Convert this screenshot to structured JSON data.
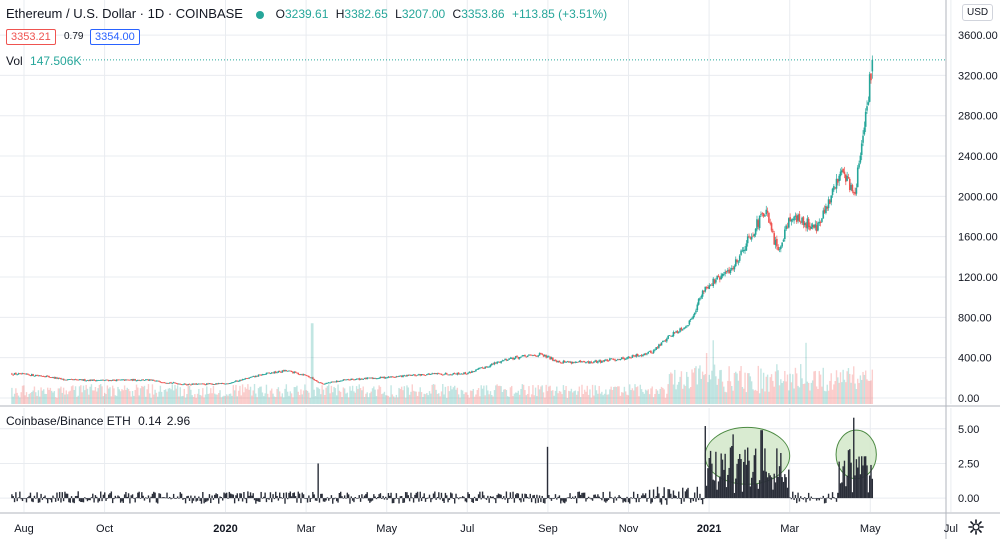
{
  "header": {
    "symbol": "Ethereum / U.S. Dollar · 1D · COINBASE",
    "o_label": "O",
    "o_value": "3239.61",
    "h_label": "H",
    "h_value": "3382.65",
    "l_label": "L",
    "l_value": "3207.00",
    "c_label": "C",
    "c_value": "3353.86",
    "change": "+113.85 (+3.51%)",
    "bid": "3353.21",
    "spread": "0.79",
    "ask": "3354.00",
    "vol_label": "Vol",
    "vol_value": "147.506K",
    "currency": "USD"
  },
  "indicator": {
    "label": "Coinbase/Binance ETH",
    "v1": "0.14",
    "v2": "2.96"
  },
  "colors": {
    "up": "#26a69a",
    "down": "#ef5350",
    "grid": "#e9ecf0",
    "indicator": "#2a2e39",
    "highlight_fill": "#cfe6c6",
    "highlight_stroke": "#4c8a42"
  },
  "chart_data": [
    {
      "type": "candlestick",
      "title": "Ethereum / U.S. Dollar",
      "x_labels": [
        "Aug",
        "Oct",
        "2020",
        "Mar",
        "May",
        "Jul",
        "Sep",
        "Nov",
        "2021",
        "Mar",
        "May",
        "Jul"
      ],
      "x_label_months": [
        0,
        2,
        5,
        7,
        9,
        11,
        13,
        15,
        17,
        19,
        21,
        23
      ],
      "y_ticks": [
        0,
        400,
        800,
        1200,
        1600,
        2000,
        2400,
        2800,
        3200,
        3600
      ],
      "y_tick_labels": [
        "0.00",
        "400.00",
        "800.00",
        "1200.00",
        "1600.00",
        "2000.00",
        "2400.00",
        "2800.00",
        "3200.00",
        "3600.00"
      ],
      "ylim": [
        -60,
        3700
      ],
      "last_price": 3353.86,
      "price_anchors_month_value": [
        [
          -0.3,
          240
        ],
        [
          0.5,
          220
        ],
        [
          1,
          180
        ],
        [
          2,
          175
        ],
        [
          3,
          180
        ],
        [
          4,
          135
        ],
        [
          5,
          140
        ],
        [
          6,
          240
        ],
        [
          6.5,
          270
        ],
        [
          7,
          225
        ],
        [
          7.4,
          140
        ],
        [
          8,
          180
        ],
        [
          9,
          205
        ],
        [
          10,
          235
        ],
        [
          11,
          245
        ],
        [
          11.6,
          330
        ],
        [
          12,
          390
        ],
        [
          12.8,
          430
        ],
        [
          13.3,
          360
        ],
        [
          14,
          350
        ],
        [
          15,
          400
        ],
        [
          15.6,
          460
        ],
        [
          16,
          610
        ],
        [
          16.5,
          740
        ],
        [
          16.9,
          1100
        ],
        [
          17.3,
          1200
        ],
        [
          17.6,
          1300
        ],
        [
          18,
          1600
        ],
        [
          18.4,
          1850
        ],
        [
          18.7,
          1450
        ],
        [
          19,
          1800
        ],
        [
          19.3,
          1750
        ],
        [
          19.7,
          1700
        ],
        [
          20,
          1950
        ],
        [
          20.3,
          2300
        ],
        [
          20.6,
          2000
        ],
        [
          20.9,
          2800
        ],
        [
          21.05,
          3353.86
        ]
      ],
      "volume_spikes_month_value": [
        [
          7.15,
          0.95
        ],
        [
          17.1,
          0.75
        ],
        [
          19.4,
          0.72
        ],
        [
          16.95,
          0.6
        ]
      ]
    },
    {
      "type": "histogram",
      "title": "Coinbase/Binance ETH",
      "y_ticks": [
        0,
        2.5,
        5
      ],
      "y_tick_labels": [
        "0.00",
        "2.50",
        "5.00"
      ],
      "ylim": [
        -1.0,
        6.5
      ],
      "spikes_month_value": [
        [
          13.0,
          3.7
        ],
        [
          7.3,
          2.5
        ],
        [
          16.9,
          5.2
        ],
        [
          20.6,
          5.8
        ],
        [
          17.6,
          4.6
        ],
        [
          18.3,
          4.9
        ]
      ],
      "annotations": [
        {
          "shape": "ellipse",
          "month_range": [
            16.9,
            19.0
          ],
          "value_range": [
            1.0,
            5.1
          ]
        },
        {
          "shape": "ellipse",
          "month_range": [
            20.15,
            21.15
          ],
          "value_range": [
            1.4,
            4.9
          ]
        }
      ]
    }
  ]
}
